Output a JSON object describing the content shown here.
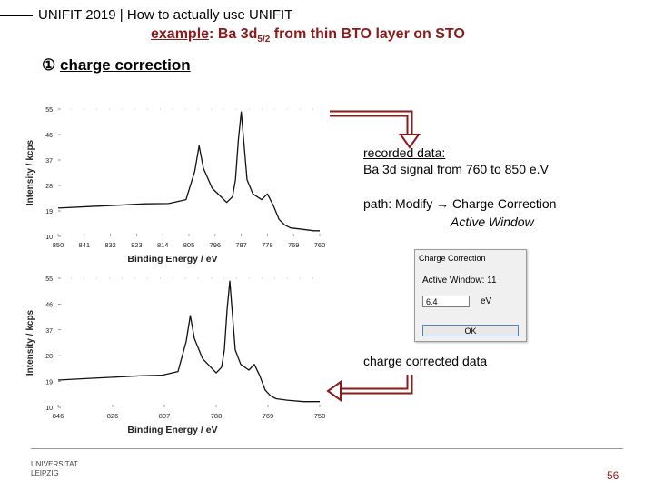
{
  "header": {
    "title_bold": "UNIFIT 2019",
    "title_sep": " | ",
    "title_rest": "How to actually use UNIFIT"
  },
  "subtitle": {
    "lead": "example",
    "rest_before_sub": ": Ba 3d",
    "subscript": "5/2",
    "rest_after_sub": " from thin BTO layer on STO"
  },
  "step": {
    "number": "①",
    "label": "charge correction"
  },
  "notes": {
    "recorded_line1": "recorded data:",
    "recorded_line2": "Ba 3d signal from 760 to 850 e.V",
    "path_line1": "path: Modify → Charge Correction",
    "path_line2": "Active Window",
    "corrected": "charge corrected data"
  },
  "dialog": {
    "title": "Charge Correction",
    "label": "Active Window: 11",
    "input_value": "6.4",
    "unit": "eV",
    "ok_label": "OK"
  },
  "footer": {
    "logo_line1": "UNIVERSITAT",
    "logo_line2": "LEIPZIG",
    "page_number": "56"
  },
  "colors": {
    "accent": "#8b1a1a",
    "arrow": "#8b1a1a",
    "spectrum": "#111111"
  },
  "chart_data": [
    {
      "type": "line",
      "title": "",
      "xlabel": "Binding Energy / eV",
      "ylabel": "Intensity / kcps",
      "x_ticks": [
        850,
        841,
        832,
        823,
        814,
        805,
        796,
        787,
        778,
        769,
        760
      ],
      "y_ticks": [
        10,
        19,
        28,
        37,
        46,
        55
      ],
      "xlim": [
        850,
        760
      ],
      "ylim": [
        10,
        55
      ],
      "series": [
        {
          "x": [
            850,
            840,
            830,
            820,
            812,
            806,
            803,
            801.5,
            800,
            797,
            794,
            792,
            790,
            789,
            788,
            787,
            786.5,
            785,
            783,
            780,
            778,
            776,
            774,
            772,
            770,
            766,
            762,
            760
          ],
          "y": [
            20,
            20.5,
            21,
            21.5,
            21.6,
            23,
            33,
            42,
            34,
            27,
            24,
            22,
            24,
            30,
            44,
            54,
            48,
            30,
            25,
            23,
            25,
            21,
            16,
            14,
            13,
            12.5,
            12,
            12
          ]
        }
      ]
    },
    {
      "type": "line",
      "title": "",
      "xlabel": "Binding Energy / eV",
      "ylabel": "Intensity / kcps",
      "x_ticks": [
        846,
        826,
        807,
        788,
        769,
        750
      ],
      "y_ticks": [
        10,
        19,
        28,
        37,
        46,
        55
      ],
      "xlim": [
        846,
        750
      ],
      "ylim": [
        10,
        55
      ],
      "series": [
        {
          "x": [
            846,
            836,
            826,
            816,
            808,
            802,
            799,
            797.5,
            796,
            793,
            790,
            788,
            786,
            785,
            784,
            783,
            782.5,
            781,
            779,
            776,
            774,
            772,
            770,
            768,
            766,
            762,
            756,
            750
          ],
          "y": [
            19.5,
            20,
            20.5,
            21,
            21.2,
            22.5,
            33,
            42,
            34,
            27,
            24,
            22,
            24,
            30,
            44,
            54,
            48,
            30,
            25,
            23,
            25,
            21,
            16,
            14,
            13,
            12.5,
            12,
            12
          ]
        }
      ]
    }
  ]
}
